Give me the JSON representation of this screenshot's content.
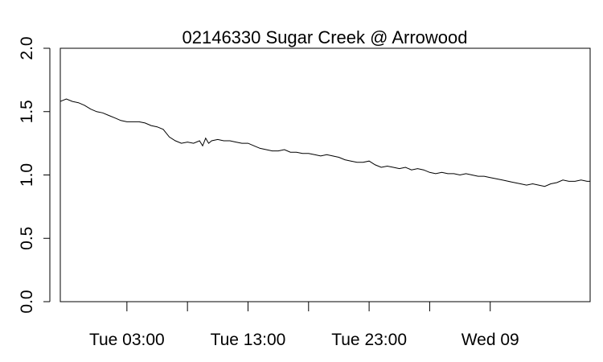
{
  "chart_data": {
    "type": "line",
    "title": "02146330 Sugar Creek @ Arrowood",
    "xlabel": "",
    "ylabel": "",
    "ylim": [
      0,
      2.0
    ],
    "x_unit": "hours since Tue 00:00 (axis labels show day and time)",
    "xlim": [
      -2.5,
      41.25
    ],
    "y_ticks": [
      {
        "value": 0.0,
        "label": "0.0"
      },
      {
        "value": 0.5,
        "label": "0.5"
      },
      {
        "value": 1.0,
        "label": "1.0"
      },
      {
        "value": 1.5,
        "label": "1.5"
      },
      {
        "value": 2.0,
        "label": "2.0"
      }
    ],
    "x_ticks": [
      {
        "value": 3,
        "label": "Tue 03:00"
      },
      {
        "value": 8,
        "label": ""
      },
      {
        "value": 13,
        "label": "Tue 13:00"
      },
      {
        "value": 18,
        "label": ""
      },
      {
        "value": 23,
        "label": "Tue 23:00"
      },
      {
        "value": 28,
        "label": ""
      },
      {
        "value": 33,
        "label": "Wed 09"
      }
    ],
    "grid": false,
    "legend": "none",
    "series": [
      {
        "x": [
          -2.5,
          -2.0,
          -1.5,
          -1.0,
          -0.5,
          0.0,
          0.5,
          1.0,
          1.5,
          2.0,
          2.5,
          3.0,
          3.5,
          4.0,
          4.5,
          5.0,
          5.5,
          6.0,
          6.5,
          7.0,
          7.5,
          8.0,
          8.5,
          9.0,
          9.25,
          9.5,
          9.75,
          10.0,
          10.5,
          11.0,
          11.5,
          12.0,
          12.5,
          13.0,
          13.5,
          14.0,
          14.5,
          15.0,
          15.5,
          16.0,
          16.5,
          17.0,
          17.5,
          18.0,
          18.5,
          19.0,
          19.5,
          20.0,
          20.5,
          21.0,
          21.5,
          22.0,
          22.5,
          23.0,
          23.5,
          24.0,
          24.5,
          25.0,
          25.5,
          26.0,
          26.5,
          27.0,
          27.5,
          28.0,
          28.5,
          29.0,
          29.5,
          30.0,
          30.5,
          31.0,
          31.5,
          32.0,
          32.5,
          33.0,
          33.5,
          34.0,
          34.5,
          35.0,
          35.5,
          36.0,
          36.5,
          37.0,
          37.5,
          38.0,
          38.5,
          39.0,
          39.5,
          40.0,
          40.5,
          41.0,
          41.25
        ],
        "values": [
          1.58,
          1.6,
          1.58,
          1.57,
          1.55,
          1.52,
          1.5,
          1.49,
          1.47,
          1.45,
          1.43,
          1.42,
          1.42,
          1.42,
          1.41,
          1.39,
          1.38,
          1.36,
          1.3,
          1.27,
          1.25,
          1.26,
          1.25,
          1.27,
          1.23,
          1.29,
          1.25,
          1.27,
          1.28,
          1.27,
          1.27,
          1.26,
          1.25,
          1.25,
          1.23,
          1.21,
          1.2,
          1.19,
          1.19,
          1.2,
          1.18,
          1.18,
          1.17,
          1.17,
          1.16,
          1.15,
          1.16,
          1.15,
          1.14,
          1.12,
          1.11,
          1.1,
          1.1,
          1.11,
          1.08,
          1.06,
          1.07,
          1.06,
          1.05,
          1.06,
          1.04,
          1.05,
          1.04,
          1.02,
          1.01,
          1.02,
          1.01,
          1.01,
          1.0,
          1.01,
          1.0,
          0.99,
          0.99,
          0.98,
          0.97,
          0.96,
          0.95,
          0.94,
          0.93,
          0.92,
          0.93,
          0.92,
          0.91,
          0.93,
          0.94,
          0.96,
          0.95,
          0.95,
          0.96,
          0.95,
          0.95
        ]
      }
    ]
  }
}
